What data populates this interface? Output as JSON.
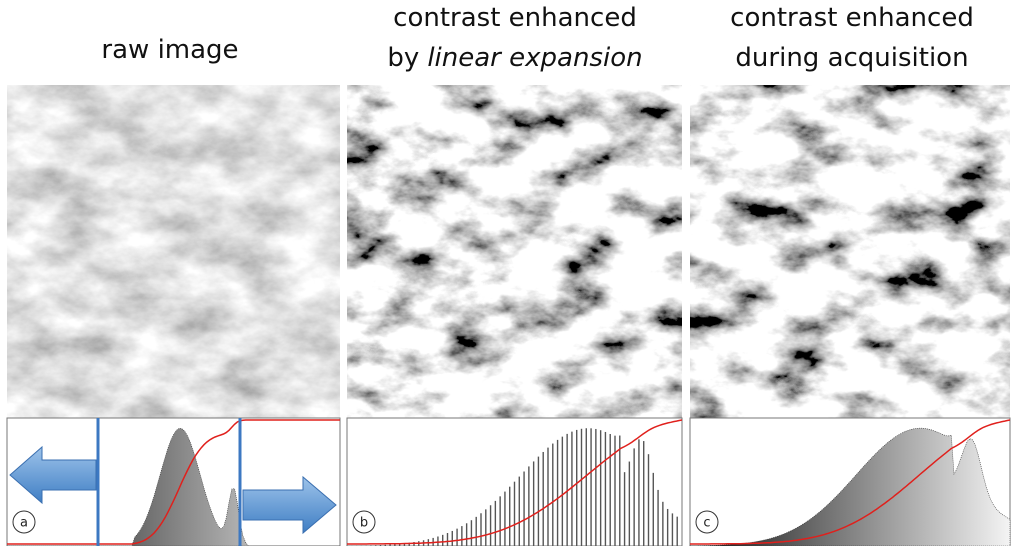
{
  "panels": [
    {
      "title_line1": "raw image",
      "label": "a"
    },
    {
      "title_line1": "contrast enhanced",
      "title_line2_prefix": "by",
      "title_line2_emphasis": "linear expansion",
      "label": "b"
    },
    {
      "title_line1": "contrast enhanced",
      "title_line2": "during acquisition",
      "label": "c"
    }
  ]
}
